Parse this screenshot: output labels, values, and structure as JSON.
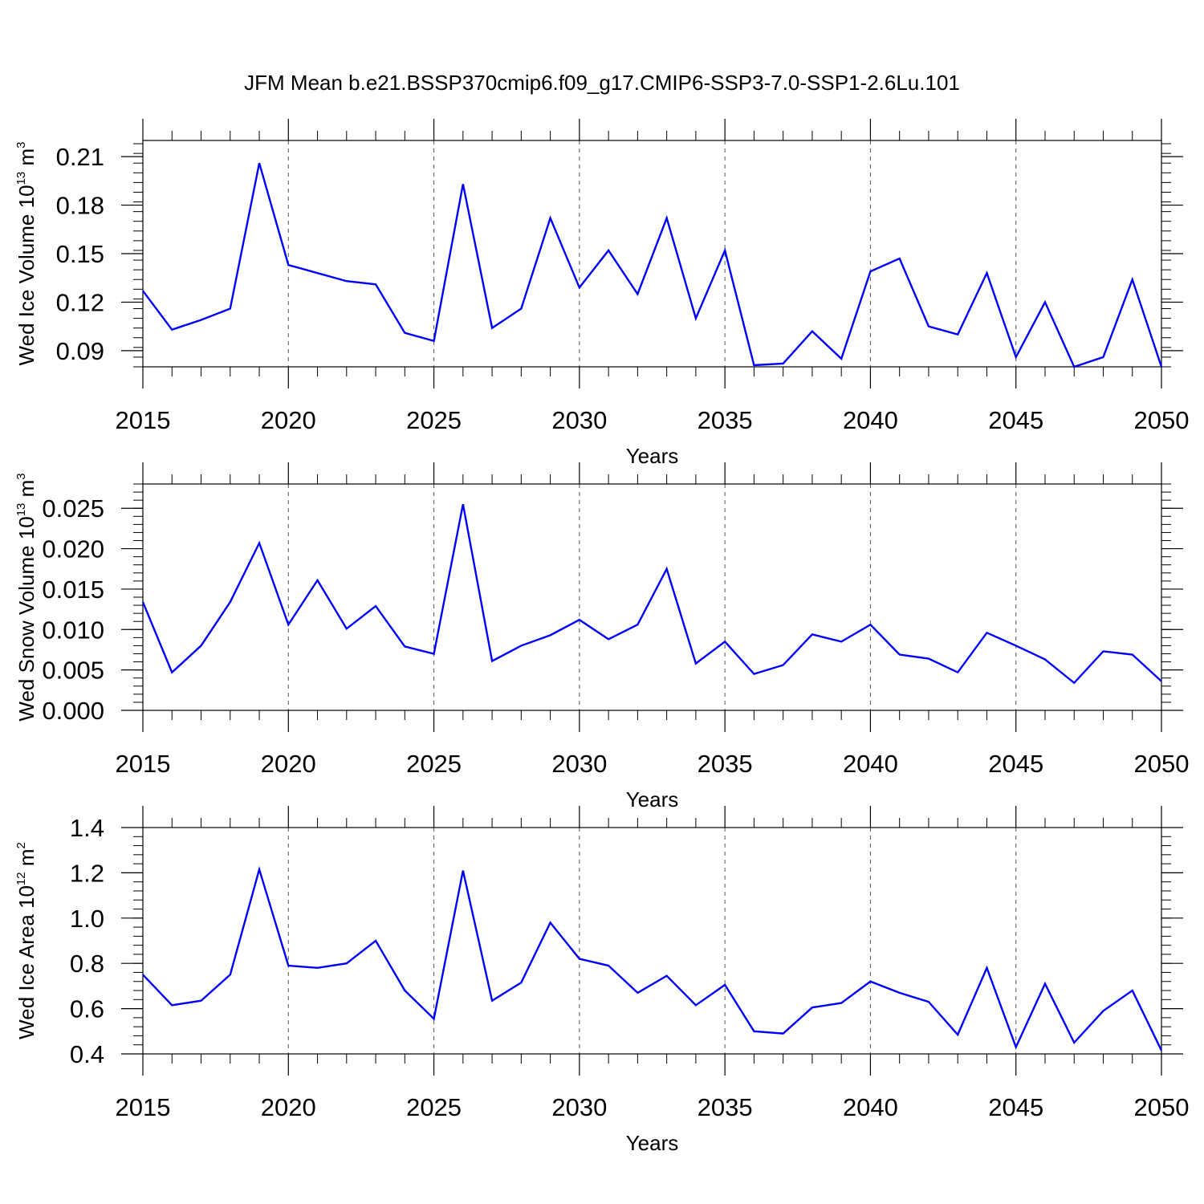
{
  "title": "JFM Mean b.e21.BSSP370cmip6.f09_g17.CMIP6-SSP3-7.0-SSP1-2.6Lu.101",
  "colors": {
    "series": "#0000ff",
    "axis": "#000000",
    "grid": "#555555"
  },
  "chart_data": [
    {
      "type": "line",
      "ylabel_main": "Wed Ice Volume 10",
      "ylabel_exp": "13",
      "ylabel_unit": " m",
      "ylabel_unit_exp": "3",
      "xlabel": "Years",
      "xlim": [
        2015,
        2050
      ],
      "ylim": [
        0.08,
        0.22
      ],
      "yticks": [
        0.09,
        0.12,
        0.15,
        0.18,
        0.21
      ],
      "ytick_labels": [
        "0.09",
        "0.12",
        "0.15",
        "0.18",
        "0.21"
      ],
      "yminor_step": 0.006,
      "xticks": [
        2015,
        2020,
        2025,
        2030,
        2035,
        2040,
        2045,
        2050
      ],
      "xtick_labels": [
        "2015",
        "2020",
        "2025",
        "2030",
        "2035",
        "2040",
        "2045",
        "2050"
      ],
      "grid_x": [
        2020,
        2025,
        2030,
        2035,
        2040,
        2045
      ],
      "x": [
        2015,
        2016,
        2017,
        2018,
        2019,
        2020,
        2021,
        2022,
        2023,
        2024,
        2025,
        2026,
        2027,
        2028,
        2029,
        2030,
        2031,
        2032,
        2033,
        2034,
        2035,
        2036,
        2037,
        2038,
        2039,
        2040,
        2041,
        2042,
        2043,
        2044,
        2045,
        2046,
        2047,
        2048,
        2049,
        2050
      ],
      "values": [
        0.127,
        0.103,
        0.109,
        0.116,
        0.206,
        0.143,
        0.138,
        0.133,
        0.131,
        0.101,
        0.096,
        0.193,
        0.104,
        0.116,
        0.172,
        0.129,
        0.152,
        0.125,
        0.172,
        0.11,
        0.152,
        0.081,
        0.082,
        0.102,
        0.085,
        0.139,
        0.147,
        0.105,
        0.1,
        0.138,
        0.086,
        0.12,
        0.08,
        0.086,
        0.134,
        0.08
      ]
    },
    {
      "type": "line",
      "ylabel_main": "Wed Snow Volume 10",
      "ylabel_exp": "13",
      "ylabel_unit": " m",
      "ylabel_unit_exp": "3",
      "xlabel": "Years",
      "xlim": [
        2015,
        2050
      ],
      "ylim": [
        0.0,
        0.028
      ],
      "yticks": [
        0.0,
        0.005,
        0.01,
        0.015,
        0.02,
        0.025
      ],
      "ytick_labels": [
        "0.000",
        "0.005",
        "0.010",
        "0.015",
        "0.020",
        "0.025"
      ],
      "yminor_step": 0.001,
      "xticks": [
        2015,
        2020,
        2025,
        2030,
        2035,
        2040,
        2045,
        2050
      ],
      "xtick_labels": [
        "2015",
        "2020",
        "2025",
        "2030",
        "2035",
        "2040",
        "2045",
        "2050"
      ],
      "grid_x": [
        2020,
        2025,
        2030,
        2035,
        2040,
        2045
      ],
      "x": [
        2015,
        2016,
        2017,
        2018,
        2019,
        2020,
        2021,
        2022,
        2023,
        2024,
        2025,
        2026,
        2027,
        2028,
        2029,
        2030,
        2031,
        2032,
        2033,
        2034,
        2035,
        2036,
        2037,
        2038,
        2039,
        2040,
        2041,
        2042,
        2043,
        2044,
        2045,
        2046,
        2047,
        2048,
        2049,
        2050
      ],
      "values": [
        0.0134,
        0.0047,
        0.008,
        0.0134,
        0.0207,
        0.0106,
        0.0161,
        0.0101,
        0.0129,
        0.0079,
        0.007,
        0.0255,
        0.0061,
        0.008,
        0.0093,
        0.0112,
        0.0088,
        0.0106,
        0.0175,
        0.0058,
        0.0085,
        0.0045,
        0.0056,
        0.0094,
        0.0085,
        0.0106,
        0.0069,
        0.0064,
        0.0047,
        0.0096,
        0.008,
        0.0063,
        0.0034,
        0.0073,
        0.0069,
        0.0036
      ]
    },
    {
      "type": "line",
      "ylabel_main": "Wed Ice Area 10",
      "ylabel_exp": "12",
      "ylabel_unit": " m",
      "ylabel_unit_exp": "2",
      "xlabel": "Years",
      "xlim": [
        2015,
        2050
      ],
      "ylim": [
        0.4,
        1.4
      ],
      "yticks": [
        0.4,
        0.6,
        0.8,
        1.0,
        1.2,
        1.4
      ],
      "ytick_labels": [
        "0.4",
        "0.6",
        "0.8",
        "1.0",
        "1.2",
        "1.4"
      ],
      "yminor_step": 0.04,
      "xticks": [
        2015,
        2020,
        2025,
        2030,
        2035,
        2040,
        2045,
        2050
      ],
      "xtick_labels": [
        "2015",
        "2020",
        "2025",
        "2030",
        "2035",
        "2040",
        "2045",
        "2050"
      ],
      "grid_x": [
        2020,
        2025,
        2030,
        2035,
        2040,
        2045
      ],
      "x": [
        2015,
        2016,
        2017,
        2018,
        2019,
        2020,
        2021,
        2022,
        2023,
        2024,
        2025,
        2026,
        2027,
        2028,
        2029,
        2030,
        2031,
        2032,
        2033,
        2034,
        2035,
        2036,
        2037,
        2038,
        2039,
        2040,
        2041,
        2042,
        2043,
        2044,
        2045,
        2046,
        2047,
        2048,
        2049,
        2050
      ],
      "values": [
        0.75,
        0.615,
        0.635,
        0.75,
        1.215,
        0.79,
        0.78,
        0.8,
        0.9,
        0.68,
        0.555,
        1.21,
        0.635,
        0.715,
        0.98,
        0.82,
        0.79,
        0.67,
        0.745,
        0.615,
        0.705,
        0.5,
        0.49,
        0.605,
        0.625,
        0.72,
        0.67,
        0.63,
        0.485,
        0.78,
        0.43,
        0.71,
        0.45,
        0.59,
        0.68,
        0.415
      ]
    }
  ]
}
